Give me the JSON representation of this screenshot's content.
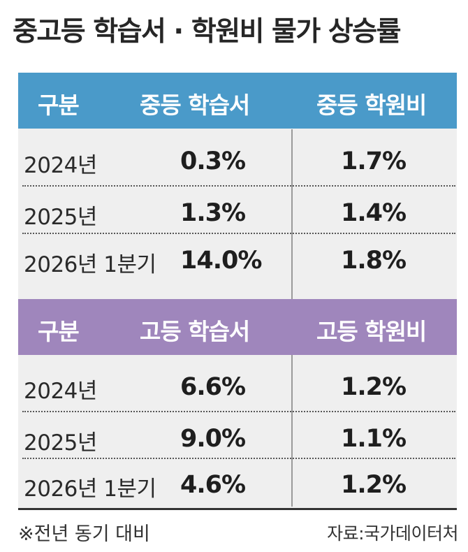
{
  "title": "중고등 학습서 · 학원비 물가 상승률",
  "chart_data": {
    "type": "table",
    "title": "중고등 학습서 · 학원비 물가 상승률",
    "tables": [
      {
        "columns": [
          "구분",
          "중등 학습서",
          "중등 학원비"
        ],
        "rows": [
          {
            "label": "2024년",
            "values": [
              "0.3%",
              "1.7%"
            ]
          },
          {
            "label": "2025년",
            "values": [
              "1.3%",
              "1.4%"
            ]
          },
          {
            "label": "2026년 1분기",
            "values": [
              "14.0%",
              "1.8%"
            ]
          }
        ],
        "header_color": "#4a9ac9"
      },
      {
        "columns": [
          "구분",
          "고등 학습서",
          "고등 학원비"
        ],
        "rows": [
          {
            "label": "2024년",
            "values": [
              "6.6%",
              "1.2%"
            ]
          },
          {
            "label": "2025년",
            "values": [
              "9.0%",
              "1.1%"
            ]
          },
          {
            "label": "2026년 1분기",
            "values": [
              "4.6%",
              "1.2%"
            ]
          }
        ],
        "header_color": "#9f86bc"
      }
    ]
  },
  "footer": {
    "note": "※전년 동기 대비",
    "source": "자료:국가데이터처"
  }
}
